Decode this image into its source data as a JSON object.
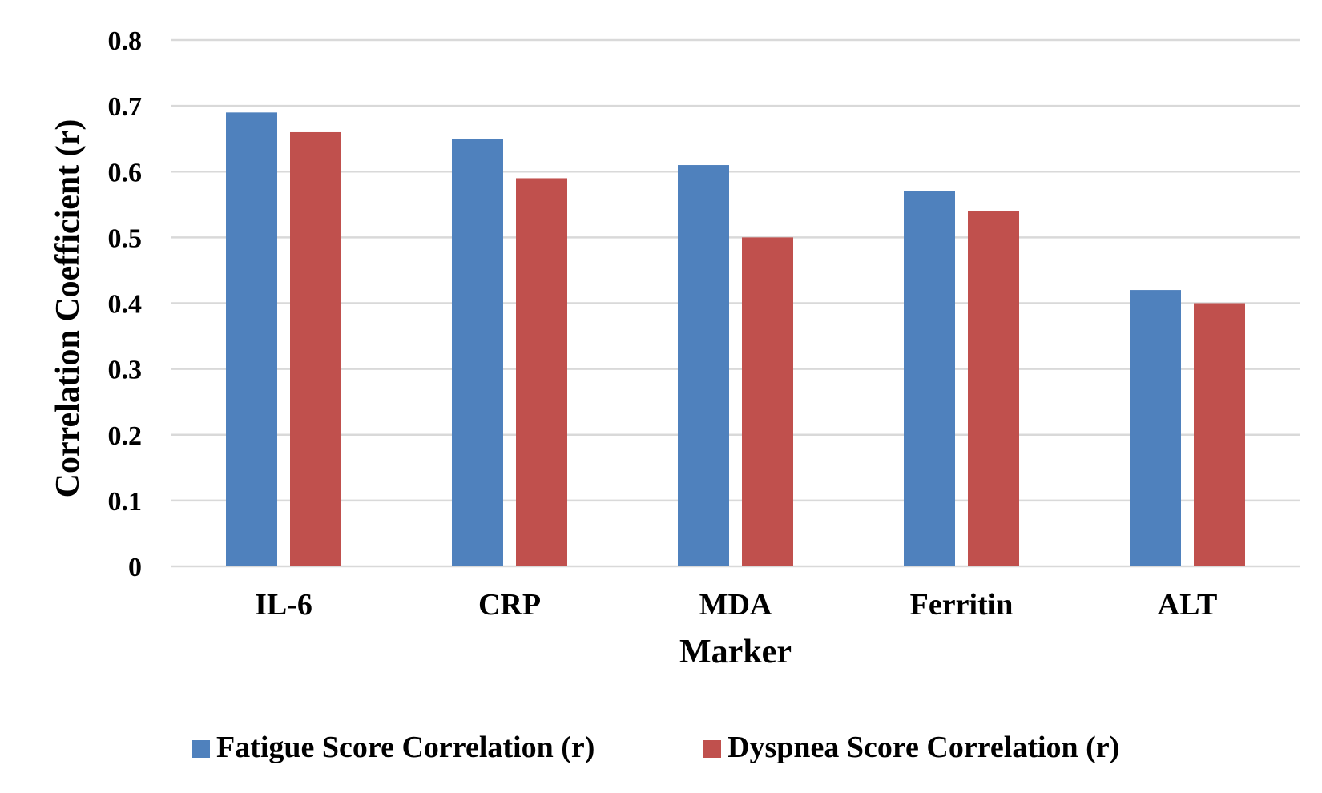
{
  "chart_data": {
    "type": "bar",
    "categories": [
      "IL-6",
      "CRP",
      "MDA",
      "Ferritin",
      "ALT"
    ],
    "series": [
      {
        "name": "Fatigue Score Correlation (r)",
        "color": "#4f81bd",
        "values": [
          0.69,
          0.65,
          0.61,
          0.57,
          0.42
        ]
      },
      {
        "name": "Dyspnea Score Correlation (r)",
        "color": "#c0504d",
        "values": [
          0.66,
          0.59,
          0.5,
          0.54,
          0.4
        ]
      }
    ],
    "xlabel": "Marker",
    "ylabel": "Correlation Coefficient (r)",
    "ylim": [
      0,
      0.8
    ],
    "yticks": [
      "0",
      "0.1",
      "0.2",
      "0.3",
      "0.4",
      "0.5",
      "0.6",
      "0.7",
      "0.8"
    ],
    "grid": true,
    "legend_position": "bottom"
  }
}
